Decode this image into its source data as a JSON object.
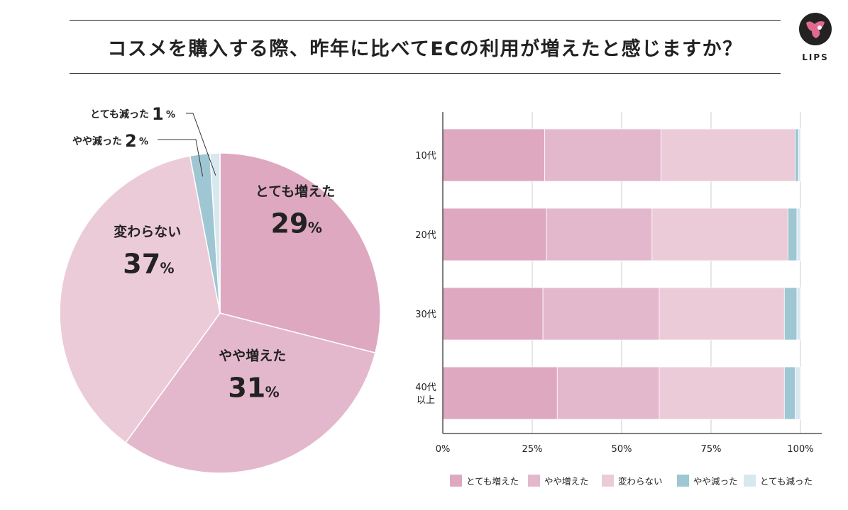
{
  "title": "コスメを購入する際、昨年に比べてECの利用が増えたと感じますか？",
  "logo": {
    "text": "LIPS"
  },
  "colors": {
    "とても増えた": "#dea8c0",
    "やや増えた": "#e4b8cc",
    "変わらない": "#eccbd9",
    "やや減った": "#9fc6d3",
    "とても減った": "#d7e8ef"
  },
  "chart_data": [
    {
      "type": "pie",
      "categories": [
        "とても増えた",
        "やや増えた",
        "変わらない",
        "やや減った",
        "とても減った"
      ],
      "values": [
        29,
        31,
        37,
        2,
        1
      ],
      "labels": [
        "29",
        "31",
        "37",
        "2",
        "1"
      ],
      "unit": "%"
    },
    {
      "type": "bar",
      "orientation": "horizontal",
      "stacked": true,
      "categories": [
        "10代",
        "20代",
        "30代",
        "40代\n以上"
      ],
      "series": [
        {
          "name": "とても増えた",
          "values": [
            28.5,
            29,
            28,
            32
          ]
        },
        {
          "name": "やや増えた",
          "values": [
            32.5,
            29.5,
            32.5,
            28.5
          ]
        },
        {
          "name": "変わらない",
          "values": [
            37.5,
            38,
            35,
            35
          ]
        },
        {
          "name": "やや減った",
          "values": [
            1,
            2.5,
            3.5,
            3
          ]
        },
        {
          "name": "とても減った",
          "values": [
            0.5,
            1,
            1,
            1.5
          ]
        }
      ],
      "xlim": [
        0,
        100
      ],
      "xticks": [
        "0%",
        "25%",
        "50%",
        "75%",
        "100%"
      ],
      "legend": [
        "とても増えた",
        "やや増えた",
        "変わらない",
        "やや減った",
        "とても減った"
      ]
    }
  ]
}
